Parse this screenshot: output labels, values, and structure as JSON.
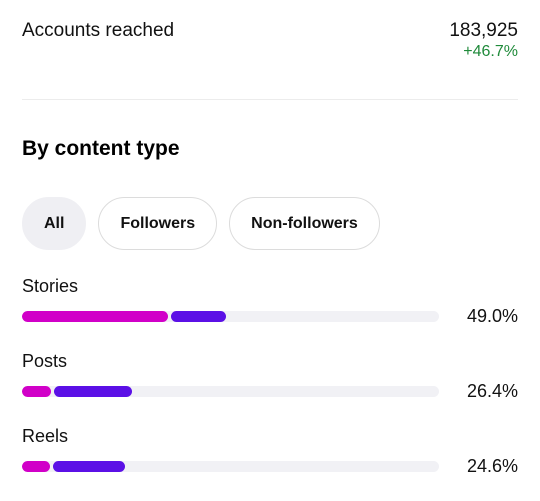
{
  "summary": {
    "label": "Accounts reached",
    "value": "183,925",
    "change": "+46.7%",
    "change_color": "#1f8a3a"
  },
  "section": {
    "title": "By content type"
  },
  "filters": [
    {
      "label": "All",
      "selected": true
    },
    {
      "label": "Followers",
      "selected": false
    },
    {
      "label": "Non-followers",
      "selected": false
    }
  ],
  "colors": {
    "followers": "#d100c8",
    "non_followers": "#5b10e6",
    "track": "#f1f1f5"
  },
  "breakdown": [
    {
      "label": "Stories",
      "percent_text": "49.0%",
      "percent": 49.0,
      "followers_share": 0.714
    },
    {
      "label": "Posts",
      "percent_text": "26.4%",
      "percent": 26.4,
      "followers_share": 0.26
    },
    {
      "label": "Reels",
      "percent_text": "24.6%",
      "percent": 24.6,
      "followers_share": 0.272
    }
  ]
}
